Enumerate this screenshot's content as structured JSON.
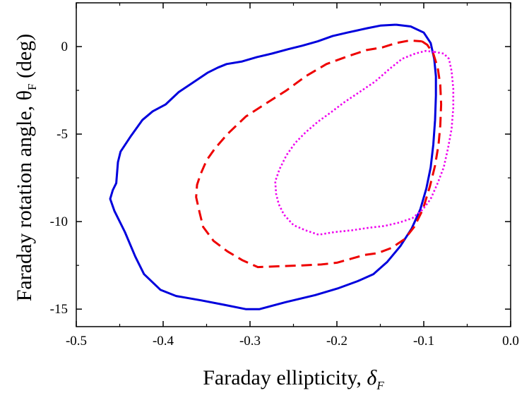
{
  "chart_data": {
    "type": "line",
    "xlabel": "Faraday ellipticity, ",
    "xlabel_symbol": "δ",
    "xlabel_subscript": "F",
    "ylabel": "Faraday rotation angle, ",
    "ylabel_symbol": "θ",
    "ylabel_subscript": "F",
    "ylabel_unit": " (deg)",
    "xlim": [
      -0.5,
      0.0
    ],
    "ylim": [
      -16,
      2.5
    ],
    "x_ticks": [
      -0.5,
      -0.4,
      -0.3,
      -0.2,
      -0.1,
      0.0
    ],
    "x_tick_labels": [
      "-0.5",
      "-0.4",
      "-0.3",
      "-0.2",
      "-0.1",
      "0.0"
    ],
    "y_ticks": [
      -15,
      -10,
      -5,
      0
    ],
    "y_tick_labels": [
      "-15",
      "-10",
      "-5",
      "0"
    ],
    "grid": false,
    "legend": "none",
    "series": [
      {
        "color": "#0000dd",
        "style": "solid",
        "points": [
          [
            -0.132,
            1.25
          ],
          [
            -0.115,
            1.15
          ],
          [
            -0.1,
            0.8
          ],
          [
            -0.092,
            0.2
          ],
          [
            -0.088,
            -0.7
          ],
          [
            -0.086,
            -1.7
          ],
          [
            -0.086,
            -2.8
          ],
          [
            -0.087,
            -4.2
          ],
          [
            -0.089,
            -5.6
          ],
          [
            -0.092,
            -6.9
          ],
          [
            -0.097,
            -8.1
          ],
          [
            -0.104,
            -9.3
          ],
          [
            -0.114,
            -10.4
          ],
          [
            -0.127,
            -11.4
          ],
          [
            -0.142,
            -12.3
          ],
          [
            -0.158,
            -13.0
          ],
          [
            -0.176,
            -13.4
          ],
          [
            -0.198,
            -13.8
          ],
          [
            -0.225,
            -14.2
          ],
          [
            -0.259,
            -14.6
          ],
          [
            -0.289,
            -15.0
          ],
          [
            -0.305,
            -15.0
          ],
          [
            -0.33,
            -14.75
          ],
          [
            -0.356,
            -14.5
          ],
          [
            -0.385,
            -14.25
          ],
          [
            -0.403,
            -13.9
          ],
          [
            -0.422,
            -13.0
          ],
          [
            -0.432,
            -12.0
          ],
          [
            -0.444,
            -10.6
          ],
          [
            -0.456,
            -9.4
          ],
          [
            -0.461,
            -8.7
          ],
          [
            -0.458,
            -8.2
          ],
          [
            -0.454,
            -7.8
          ],
          [
            -0.452,
            -6.6
          ],
          [
            -0.449,
            -6.0
          ],
          [
            -0.437,
            -5.1
          ],
          [
            -0.424,
            -4.2
          ],
          [
            -0.412,
            -3.7
          ],
          [
            -0.397,
            -3.3
          ],
          [
            -0.382,
            -2.6
          ],
          [
            -0.367,
            -2.1
          ],
          [
            -0.349,
            -1.5
          ],
          [
            -0.337,
            -1.2
          ],
          [
            -0.327,
            -1.0
          ],
          [
            -0.309,
            -0.85
          ],
          [
            -0.292,
            -0.6
          ],
          [
            -0.275,
            -0.4
          ],
          [
            -0.256,
            -0.15
          ],
          [
            -0.24,
            0.05
          ],
          [
            -0.222,
            0.3
          ],
          [
            -0.205,
            0.6
          ],
          [
            -0.188,
            0.8
          ],
          [
            -0.165,
            1.05
          ],
          [
            -0.15,
            1.2
          ],
          [
            -0.132,
            1.25
          ]
        ]
      },
      {
        "color": "#ee0000",
        "style": "dashed",
        "points": [
          [
            -0.102,
            0.3
          ],
          [
            -0.096,
            0.1
          ],
          [
            -0.089,
            -0.4
          ],
          [
            -0.084,
            -1.2
          ],
          [
            -0.081,
            -2.2
          ],
          [
            -0.08,
            -3.3
          ],
          [
            -0.081,
            -4.5
          ],
          [
            -0.083,
            -5.6
          ],
          [
            -0.087,
            -6.8
          ],
          [
            -0.093,
            -8.0
          ],
          [
            -0.101,
            -9.3
          ],
          [
            -0.111,
            -10.3
          ],
          [
            -0.122,
            -11.0
          ],
          [
            -0.137,
            -11.5
          ],
          [
            -0.153,
            -11.8
          ],
          [
            -0.168,
            -11.9
          ],
          [
            -0.182,
            -12.1
          ],
          [
            -0.2,
            -12.35
          ],
          [
            -0.218,
            -12.45
          ],
          [
            -0.24,
            -12.5
          ],
          [
            -0.266,
            -12.55
          ],
          [
            -0.291,
            -12.6
          ],
          [
            -0.309,
            -12.2
          ],
          [
            -0.326,
            -11.7
          ],
          [
            -0.342,
            -11.1
          ],
          [
            -0.354,
            -10.3
          ],
          [
            -0.358,
            -9.5
          ],
          [
            -0.362,
            -8.6
          ],
          [
            -0.361,
            -7.9
          ],
          [
            -0.357,
            -7.3
          ],
          [
            -0.35,
            -6.5
          ],
          [
            -0.34,
            -5.8
          ],
          [
            -0.326,
            -5.0
          ],
          [
            -0.305,
            -4.0
          ],
          [
            -0.28,
            -3.2
          ],
          [
            -0.258,
            -2.5
          ],
          [
            -0.236,
            -1.7
          ],
          [
            -0.212,
            -1.0
          ],
          [
            -0.19,
            -0.6
          ],
          [
            -0.166,
            -0.2
          ],
          [
            -0.148,
            -0.05
          ],
          [
            -0.132,
            0.2
          ],
          [
            -0.116,
            0.35
          ],
          [
            -0.102,
            0.3
          ]
        ]
      },
      {
        "color": "#ee00ee",
        "style": "dotted",
        "points": [
          [
            -0.088,
            -0.3
          ],
          [
            -0.077,
            -0.4
          ],
          [
            -0.071,
            -0.7
          ],
          [
            -0.068,
            -1.4
          ],
          [
            -0.066,
            -2.4
          ],
          [
            -0.066,
            -3.5
          ],
          [
            -0.068,
            -4.7
          ],
          [
            -0.072,
            -5.8
          ],
          [
            -0.077,
            -6.9
          ],
          [
            -0.084,
            -7.8
          ],
          [
            -0.092,
            -8.7
          ],
          [
            -0.101,
            -9.3
          ],
          [
            -0.113,
            -9.8
          ],
          [
            -0.128,
            -10.05
          ],
          [
            -0.145,
            -10.25
          ],
          [
            -0.163,
            -10.35
          ],
          [
            -0.183,
            -10.5
          ],
          [
            -0.203,
            -10.6
          ],
          [
            -0.221,
            -10.75
          ],
          [
            -0.236,
            -10.5
          ],
          [
            -0.25,
            -10.2
          ],
          [
            -0.261,
            -9.6
          ],
          [
            -0.267,
            -9.0
          ],
          [
            -0.27,
            -8.4
          ],
          [
            -0.271,
            -7.7
          ],
          [
            -0.266,
            -7.0
          ],
          [
            -0.258,
            -6.2
          ],
          [
            -0.248,
            -5.5
          ],
          [
            -0.236,
            -4.9
          ],
          [
            -0.222,
            -4.3
          ],
          [
            -0.208,
            -3.8
          ],
          [
            -0.192,
            -3.2
          ],
          [
            -0.174,
            -2.6
          ],
          [
            -0.156,
            -2.0
          ],
          [
            -0.14,
            -1.3
          ],
          [
            -0.125,
            -0.7
          ],
          [
            -0.11,
            -0.4
          ],
          [
            -0.098,
            -0.25
          ],
          [
            -0.088,
            -0.3
          ]
        ]
      }
    ]
  }
}
